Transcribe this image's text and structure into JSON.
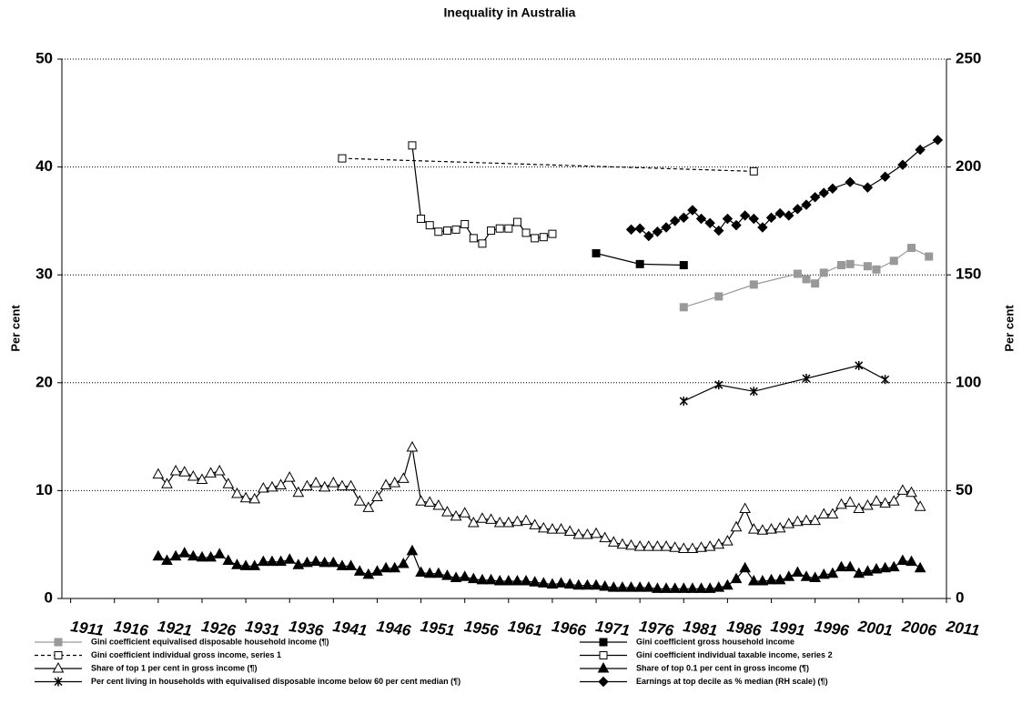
{
  "chart_data": {
    "type": "line",
    "title": "Inequality in Australia",
    "y_label": "Per cent",
    "y2_label": "Per cent",
    "xlim": [
      1910,
      2011
    ],
    "xticks": [
      1911,
      1916,
      1921,
      1926,
      1931,
      1936,
      1941,
      1946,
      1951,
      1956,
      1961,
      1966,
      1971,
      1976,
      1981,
      1986,
      1991,
      1996,
      2001,
      2006,
      2011
    ],
    "ylim": [
      0,
      50
    ],
    "yticks": [
      0,
      10,
      20,
      30,
      40,
      50
    ],
    "y2lim": [
      0,
      250
    ],
    "y2ticks": [
      0,
      50,
      100,
      150,
      200,
      250
    ],
    "grid": true,
    "series": [
      {
        "name": "Gini coefficient equivalised disposable household income (¶)",
        "color": "#999999",
        "marker": "square",
        "marker_fill": true,
        "line_style": "solid",
        "x": [
          1981,
          1985,
          1989,
          1994,
          1995,
          1996,
          1997,
          1999,
          2000,
          2002,
          2003,
          2005,
          2007,
          2009
        ],
        "values": [
          27.0,
          28.0,
          29.1,
          30.1,
          29.6,
          29.2,
          30.2,
          30.9,
          31.0,
          30.8,
          30.5,
          31.3,
          32.5,
          31.7
        ]
      },
      {
        "name": "Gini coefficient gross household income",
        "color": "#000000",
        "marker": "square",
        "marker_fill": true,
        "line_style": "solid",
        "x": [
          1971,
          1976,
          1981
        ],
        "values": [
          32.0,
          31.0,
          30.9
        ]
      },
      {
        "name": "Gini coefficient individual gross income, series 1",
        "color": "#000000",
        "marker": "square",
        "marker_fill": false,
        "line_style": "dashed",
        "x": [
          1942,
          1989
        ],
        "values": [
          40.8,
          39.6
        ]
      },
      {
        "name": "Gini coefficient individual taxable income, series 2",
        "color": "#000000",
        "marker": "square",
        "marker_fill": false,
        "line_style": "solid",
        "x": [
          1950,
          1951,
          1952,
          1953,
          1954,
          1955,
          1956,
          1957,
          1958,
          1959,
          1960,
          1961,
          1962,
          1963,
          1964,
          1965,
          1966
        ],
        "values": [
          42.0,
          35.2,
          34.6,
          34.0,
          34.1,
          34.2,
          34.7,
          33.4,
          32.9,
          34.1,
          34.3,
          34.3,
          34.9,
          33.9,
          33.4,
          33.5,
          33.8
        ]
      },
      {
        "name": "Share of top 1 per cent in gross income (¶)",
        "color": "#000000",
        "marker": "triangle",
        "marker_fill": false,
        "line_style": "solid",
        "x": [
          1921,
          1922,
          1923,
          1924,
          1925,
          1926,
          1927,
          1928,
          1929,
          1930,
          1931,
          1932,
          1933,
          1934,
          1935,
          1936,
          1937,
          1938,
          1939,
          1940,
          1941,
          1942,
          1943,
          1944,
          1945,
          1946,
          1947,
          1948,
          1949,
          1950,
          1951,
          1952,
          1953,
          1954,
          1955,
          1956,
          1957,
          1958,
          1959,
          1960,
          1961,
          1962,
          1963,
          1964,
          1965,
          1966,
          1967,
          1968,
          1969,
          1970,
          1971,
          1972,
          1973,
          1974,
          1975,
          1976,
          1977,
          1978,
          1979,
          1980,
          1981,
          1982,
          1983,
          1984,
          1985,
          1986,
          1987,
          1988,
          1989,
          1990,
          1991,
          1992,
          1993,
          1994,
          1995,
          1996,
          1997,
          1998,
          1999,
          2000,
          2001,
          2002,
          2003,
          2004,
          2005,
          2006,
          2007,
          2008
        ],
        "values": [
          11.5,
          10.6,
          11.8,
          11.7,
          11.3,
          11.0,
          11.6,
          11.8,
          10.6,
          9.7,
          9.3,
          9.2,
          10.2,
          10.3,
          10.5,
          11.2,
          9.8,
          10.4,
          10.7,
          10.3,
          10.7,
          10.4,
          10.4,
          9.0,
          8.4,
          9.4,
          10.5,
          10.7,
          11.1,
          14.0,
          9.0,
          8.9,
          8.6,
          8.0,
          7.6,
          7.9,
          7.0,
          7.4,
          7.3,
          7.0,
          7.0,
          7.1,
          7.2,
          6.8,
          6.5,
          6.4,
          6.4,
          6.2,
          5.9,
          5.9,
          6.0,
          5.6,
          5.2,
          5.0,
          4.9,
          4.8,
          4.8,
          4.8,
          4.8,
          4.7,
          4.6,
          4.6,
          4.7,
          4.8,
          5.0,
          5.3,
          6.6,
          8.3,
          6.4,
          6.3,
          6.4,
          6.5,
          6.9,
          7.1,
          7.2,
          7.2,
          7.8,
          7.8,
          8.7,
          8.9,
          8.3,
          8.6,
          9.0,
          8.8,
          9.0,
          10.0,
          9.8,
          8.5
        ]
      },
      {
        "name": "Share of top 0.1 per cent in gross income (¶)",
        "color": "#000000",
        "marker": "triangle",
        "marker_fill": true,
        "line_style": "solid",
        "x": [
          1921,
          1922,
          1923,
          1924,
          1925,
          1926,
          1927,
          1928,
          1929,
          1930,
          1931,
          1932,
          1933,
          1934,
          1935,
          1936,
          1937,
          1938,
          1939,
          1940,
          1941,
          1942,
          1943,
          1944,
          1945,
          1946,
          1947,
          1948,
          1949,
          1950,
          1951,
          1952,
          1953,
          1954,
          1955,
          1956,
          1957,
          1958,
          1959,
          1960,
          1961,
          1962,
          1963,
          1964,
          1965,
          1966,
          1967,
          1968,
          1969,
          1970,
          1971,
          1972,
          1973,
          1974,
          1975,
          1976,
          1977,
          1978,
          1979,
          1980,
          1981,
          1982,
          1983,
          1984,
          1985,
          1986,
          1987,
          1988,
          1989,
          1990,
          1991,
          1992,
          1993,
          1994,
          1995,
          1996,
          1997,
          1998,
          1999,
          2000,
          2001,
          2002,
          2003,
          2004,
          2005,
          2006,
          2007,
          2008
        ],
        "values": [
          3.9,
          3.5,
          3.9,
          4.2,
          3.9,
          3.8,
          3.8,
          4.1,
          3.5,
          3.1,
          3.0,
          3.0,
          3.4,
          3.4,
          3.4,
          3.6,
          3.1,
          3.3,
          3.4,
          3.3,
          3.3,
          3.0,
          3.0,
          2.5,
          2.2,
          2.5,
          2.8,
          2.8,
          3.2,
          4.4,
          2.4,
          2.3,
          2.3,
          2.1,
          1.9,
          2.0,
          1.8,
          1.7,
          1.7,
          1.6,
          1.6,
          1.6,
          1.6,
          1.5,
          1.4,
          1.3,
          1.4,
          1.3,
          1.2,
          1.2,
          1.2,
          1.1,
          1.0,
          1.0,
          1.0,
          1.0,
          1.0,
          0.9,
          0.9,
          0.9,
          0.9,
          0.9,
          0.9,
          0.9,
          1.0,
          1.2,
          1.8,
          2.8,
          1.6,
          1.6,
          1.7,
          1.7,
          2.0,
          2.4,
          2.0,
          1.9,
          2.2,
          2.3,
          2.9,
          2.9,
          2.3,
          2.5,
          2.7,
          2.8,
          2.9,
          3.5,
          3.4,
          2.8
        ]
      },
      {
        "name": "Per cent living in households with equivalised disposable income below 60 per cent median (¶)",
        "color": "#000000",
        "marker": "star",
        "marker_fill": false,
        "line_style": "solid",
        "x": [
          1981,
          1985,
          1989,
          1995,
          2001,
          2004
        ],
        "values": [
          18.3,
          19.8,
          19.2,
          20.4,
          21.6,
          20.3
        ]
      },
      {
        "name": "Earnings at top decile as % median (RH scale) (¶)",
        "color": "#000000",
        "marker": "diamond",
        "marker_fill": true,
        "line_style": "solid",
        "axis": "y2",
        "x": [
          1975,
          1976,
          1977,
          1978,
          1979,
          1980,
          1981,
          1982,
          1983,
          1984,
          1985,
          1986,
          1987,
          1988,
          1989,
          1990,
          1991,
          1992,
          1993,
          1994,
          1995,
          1996,
          1997,
          1998,
          2000,
          2002,
          2004,
          2006,
          2008,
          2010
        ],
        "values": [
          171,
          171.5,
          168,
          170,
          172,
          175,
          176.5,
          180,
          176,
          174,
          170.5,
          176,
          173,
          177.5,
          176,
          172,
          176.5,
          178.5,
          177.5,
          180.5,
          182.5,
          186,
          188,
          190,
          193,
          190.5,
          195.5,
          201,
          208,
          212.5
        ]
      }
    ]
  }
}
